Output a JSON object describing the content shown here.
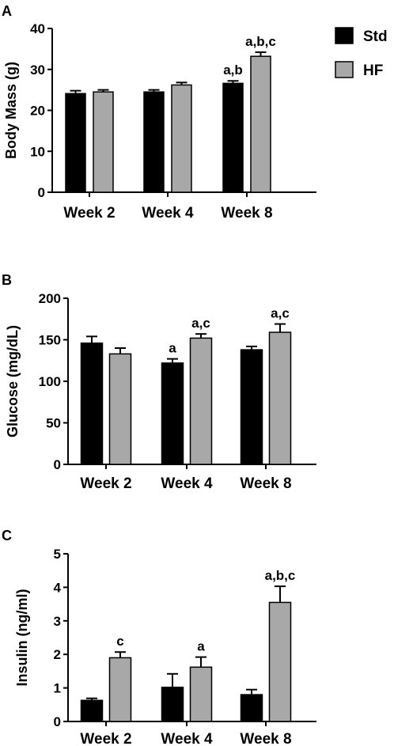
{
  "colors": {
    "std": "#000000",
    "hf": "#a8a8a8",
    "axis": "#000000"
  },
  "legend": [
    {
      "label": "Std",
      "color": "#000000"
    },
    {
      "label": "HF",
      "color": "#a8a8a8"
    }
  ],
  "chart_data": [
    {
      "type": "bar",
      "panel_label": "A",
      "ylabel": "Body Mass (g)",
      "xlabel": "",
      "categories": [
        "Week 2",
        "Week 4",
        "Week 8"
      ],
      "ylim": [
        0,
        40
      ],
      "yticks": [
        0,
        10,
        20,
        30,
        40
      ],
      "legend_position": "top-right",
      "series": [
        {
          "name": "Std",
          "values": [
            24.1,
            24.5,
            26.6
          ],
          "errors": [
            0.7,
            0.5,
            0.6
          ],
          "annotations": [
            "",
            "",
            "a,b"
          ]
        },
        {
          "name": "HF",
          "values": [
            24.5,
            26.2,
            33.2
          ],
          "errors": [
            0.5,
            0.6,
            1.0
          ],
          "annotations": [
            "",
            "",
            "a,b,c"
          ]
        }
      ]
    },
    {
      "type": "bar",
      "panel_label": "B",
      "ylabel": "Glucose  (mg/dL)",
      "xlabel": "",
      "categories": [
        "Week 2",
        "Week 4",
        "Week 8"
      ],
      "ylim": [
        0,
        200
      ],
      "yticks": [
        0,
        50,
        100,
        150,
        200
      ],
      "series": [
        {
          "name": "Std",
          "values": [
            146,
            122,
            138
          ],
          "errors": [
            8,
            5,
            4
          ],
          "annotations": [
            "",
            "a",
            ""
          ]
        },
        {
          "name": "HF",
          "values": [
            133,
            152,
            159
          ],
          "errors": [
            7,
            5,
            10
          ],
          "annotations": [
            "",
            "a,c",
            "a,c"
          ]
        }
      ]
    },
    {
      "type": "bar",
      "panel_label": "C",
      "ylabel": "Insulin (ng/ml)",
      "xlabel": "",
      "categories": [
        "Week 2",
        "Week 4",
        "Week 8"
      ],
      "ylim": [
        0,
        5
      ],
      "yticks": [
        0,
        1,
        2,
        3,
        4,
        5
      ],
      "series": [
        {
          "name": "Std",
          "values": [
            0.63,
            1.02,
            0.8
          ],
          "errors": [
            0.06,
            0.4,
            0.15
          ],
          "annotations": [
            "",
            "",
            ""
          ]
        },
        {
          "name": "HF",
          "values": [
            1.9,
            1.62,
            3.55
          ],
          "errors": [
            0.17,
            0.3,
            0.48
          ],
          "annotations": [
            "c",
            "a",
            "a,b,c"
          ]
        }
      ]
    }
  ]
}
